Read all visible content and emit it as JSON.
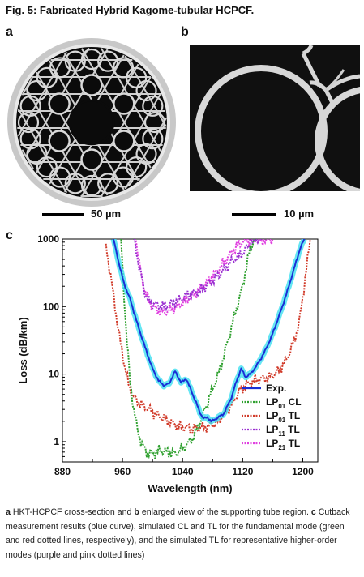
{
  "figure": {
    "title": "Fig. 5: Fabricated Hybrid Kagome-tubular HCPCF.",
    "panels": {
      "a": "a",
      "b": "b",
      "c": "c"
    },
    "scalebar_a": "50 µm",
    "scalebar_b": "10 µm"
  },
  "caption": {
    "bold_a": "a",
    "text1": " HKT-HCPCF cross-section and ",
    "bold_b": "b",
    "text2": " enlarged view of the supporting tube region. ",
    "bold_c": "c",
    "text3": " Cutback measurement results (blue curve), simulated CL and TL for the fundamental mode (green and red dotted lines, respectively), and the simulated TL for representative higher-order modes (purple and pink dotted lines)"
  },
  "chart_data": {
    "type": "line",
    "xlabel": "Wavelength (nm)",
    "ylabel": "Loss (dB/km)",
    "xlim": [
      880,
      1220
    ],
    "ylim": [
      0.5,
      1000
    ],
    "yscale": "log",
    "xticks": [
      880,
      960,
      1040,
      1120,
      1200
    ],
    "yticks": [
      1,
      10,
      100,
      1000
    ],
    "legend_position": "bottom-right",
    "colors": {
      "exp": "#1a2fd6",
      "exp_band": "#40e0f0",
      "lp01_cl": "#2ea02e",
      "lp01_tl": "#d13b2a",
      "lp11_tl": "#9a2fd1",
      "lp21_tl": "#e040e0"
    },
    "series": [
      {
        "name": "Exp.",
        "style": "solid",
        "x": [
          948,
          955,
          962,
          970,
          980,
          990,
          1000,
          1008,
          1015,
          1022,
          1030,
          1038,
          1045,
          1052,
          1058,
          1063,
          1068,
          1073,
          1078,
          1085,
          1095,
          1105,
          1112,
          1118,
          1124,
          1130,
          1138,
          1148,
          1158,
          1168,
          1178,
          1188,
          1196,
          1202
        ],
        "y": [
          1000,
          450,
          220,
          130,
          55,
          25,
          12,
          8,
          6.8,
          7.2,
          11,
          7.5,
          8.5,
          5.5,
          3.8,
          2.7,
          2.2,
          2.3,
          2,
          2.2,
          2.6,
          4.5,
          8,
          12,
          9,
          10,
          13,
          20,
          35,
          70,
          150,
          350,
          700,
          1000
        ]
      },
      {
        "name": "LP01 CL",
        "style": "dotted",
        "x": [
          958,
          962,
          966,
          970,
          975,
          980,
          986,
          992,
          1000,
          1010,
          1020,
          1030,
          1040,
          1048,
          1055,
          1060,
          1065,
          1072,
          1080,
          1090,
          1100,
          1110,
          1120,
          1125,
          1130,
          1135
        ],
        "y": [
          1000,
          150,
          30,
          8,
          3,
          1.5,
          0.9,
          0.7,
          0.65,
          0.75,
          0.7,
          0.65,
          0.8,
          0.95,
          1.2,
          1.6,
          2.2,
          3.5,
          6,
          12,
          30,
          80,
          200,
          400,
          700,
          1000
        ]
      },
      {
        "name": "LP01 TL",
        "style": "dotted",
        "x": [
          938,
          944,
          950,
          956,
          962,
          968,
          975,
          985,
          995,
          1005,
          1015,
          1025,
          1035,
          1045,
          1055,
          1065,
          1075,
          1085,
          1095,
          1105,
          1115,
          1125,
          1135,
          1145,
          1155,
          1165,
          1175,
          1185,
          1195,
          1203,
          1210
        ],
        "y": [
          800,
          300,
          100,
          35,
          15,
          7,
          4.5,
          3.5,
          3,
          2.5,
          2.2,
          1.9,
          1.7,
          1.6,
          1.55,
          1.6,
          1.7,
          1.9,
          2.5,
          3.5,
          5.5,
          7,
          8,
          8.5,
          9,
          10.5,
          14,
          24,
          55,
          250,
          1000
        ]
      },
      {
        "name": "LP11 TL",
        "style": "dotted",
        "x": [
          975,
          978,
          982,
          986,
          990,
          995,
          1005,
          1015,
          1025,
          1035,
          1045,
          1055,
          1065,
          1075,
          1085,
          1095,
          1105,
          1115,
          1125,
          1130,
          1135,
          1140,
          1145
        ],
        "y": [
          1000,
          700,
          400,
          250,
          160,
          120,
          105,
          100,
          110,
          125,
          145,
          160,
          175,
          220,
          270,
          350,
          470,
          560,
          720,
          850,
          950,
          1000,
          1000
        ]
      },
      {
        "name": "LP21 TL",
        "style": "dotted",
        "x": [
          978,
          982,
          986,
          990,
          995,
          1005,
          1015,
          1025,
          1035,
          1045,
          1055,
          1065,
          1075,
          1085,
          1095,
          1105,
          1115,
          1125,
          1135,
          1145,
          1155,
          1160
        ],
        "y": [
          1000,
          450,
          260,
          170,
          120,
          90,
          82,
          90,
          105,
          125,
          150,
          190,
          240,
          330,
          450,
          620,
          850,
          980,
          1000,
          950,
          1000,
          1000
        ]
      }
    ],
    "legend": [
      {
        "key": "exp",
        "label": "Exp."
      },
      {
        "key": "lp01_cl",
        "label": "LP",
        "sub": "01",
        "suffix": " CL"
      },
      {
        "key": "lp01_tl",
        "label": "LP",
        "sub": "01",
        "suffix": " TL"
      },
      {
        "key": "lp11_tl",
        "label": "LP",
        "sub": "11",
        "suffix": " TL"
      },
      {
        "key": "lp21_tl",
        "label": "LP",
        "sub": "21",
        "suffix": " TL"
      }
    ]
  }
}
